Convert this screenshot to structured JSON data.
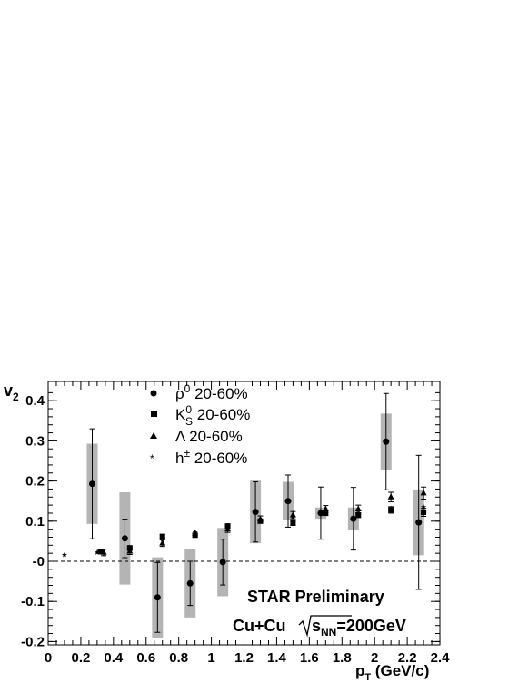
{
  "chart_data": {
    "type": "scatter",
    "xlabel": "p_T (GeV/c)",
    "ylabel": "v_2",
    "xlim": [
      0,
      2.4
    ],
    "ylim": [
      -0.21,
      0.45
    ],
    "grid": false,
    "legend_position": "top-center",
    "reference_line": {
      "y": 0,
      "style": "dashed"
    },
    "x_ticks": [
      "0",
      "0.2",
      "0.4",
      "0.6",
      "0.8",
      "1",
      "1.2",
      "1.4",
      "1.6",
      "1.8",
      "2",
      "2.2",
      "2.4"
    ],
    "y_ticks": [
      "-0.2",
      "-0.1",
      "-0",
      "0.1",
      "0.2",
      "0.3",
      "0.4"
    ],
    "annotations": {
      "preliminary": "STAR Preliminary",
      "system": "Cu+Cu",
      "energy_sym": "s",
      "energy_sub": "NN",
      "energy_val": "=200GeV"
    },
    "series": [
      {
        "name": "ρ0 20-60%",
        "marker": "circle",
        "points": [
          {
            "x": 0.27,
            "y": 0.193,
            "err": 0.137,
            "sys": 0.1
          },
          {
            "x": 0.47,
            "y": 0.057,
            "err": 0.048,
            "sys": 0.115
          },
          {
            "x": 0.67,
            "y": -0.09,
            "err": 0.087,
            "sys": 0.1
          },
          {
            "x": 0.87,
            "y": -0.055,
            "err": 0.055,
            "sys": 0.085
          },
          {
            "x": 1.07,
            "y": -0.002,
            "err": 0.057,
            "sys": 0.085
          },
          {
            "x": 1.27,
            "y": 0.123,
            "err": 0.075,
            "sys": 0.078
          },
          {
            "x": 1.47,
            "y": 0.15,
            "err": 0.065,
            "sys": 0.048
          },
          {
            "x": 1.67,
            "y": 0.12,
            "err": 0.065,
            "sys": 0.014
          },
          {
            "x": 1.87,
            "y": 0.106,
            "err": 0.078,
            "sys": 0.028
          },
          {
            "x": 2.07,
            "y": 0.298,
            "err": 0.12,
            "sys": 0.07
          },
          {
            "x": 2.27,
            "y": 0.097,
            "err": 0.167,
            "sys": 0.082
          }
        ]
      },
      {
        "name": "K0S 20-60%",
        "marker": "square",
        "points": [
          {
            "x": 0.32,
            "y": 0.024,
            "err": 0.004
          },
          {
            "x": 0.5,
            "y": 0.033,
            "err": 0.006
          },
          {
            "x": 0.7,
            "y": 0.062,
            "err": 0.004
          },
          {
            "x": 0.9,
            "y": 0.065,
            "err": 0.004
          },
          {
            "x": 1.1,
            "y": 0.088,
            "err": 0.004
          },
          {
            "x": 1.3,
            "y": 0.1,
            "err": 0.004
          },
          {
            "x": 1.5,
            "y": 0.095,
            "err": 0.005
          },
          {
            "x": 1.7,
            "y": 0.12,
            "err": 0.006
          },
          {
            "x": 1.9,
            "y": 0.115,
            "err": 0.006
          },
          {
            "x": 2.1,
            "y": 0.128,
            "err": 0.008
          },
          {
            "x": 2.3,
            "y": 0.122,
            "err": 0.01
          }
        ]
      },
      {
        "name": "Λ 20-60%",
        "marker": "triangle",
        "points": [
          {
            "x": 0.34,
            "y": 0.022,
            "err": 0.008
          },
          {
            "x": 0.5,
            "y": 0.025,
            "err": 0.008
          },
          {
            "x": 0.7,
            "y": 0.045,
            "err": 0.008
          },
          {
            "x": 0.9,
            "y": 0.07,
            "err": 0.008
          },
          {
            "x": 1.1,
            "y": 0.08,
            "err": 0.008
          },
          {
            "x": 1.3,
            "y": 0.105,
            "err": 0.008
          },
          {
            "x": 1.5,
            "y": 0.115,
            "err": 0.009
          },
          {
            "x": 1.7,
            "y": 0.13,
            "err": 0.009
          },
          {
            "x": 1.9,
            "y": 0.13,
            "err": 0.01
          },
          {
            "x": 2.1,
            "y": 0.16,
            "err": 0.012
          },
          {
            "x": 2.3,
            "y": 0.17,
            "err": 0.015
          }
        ]
      },
      {
        "name": "h± 20-60%",
        "marker": "star",
        "points": [
          {
            "x": 0.1,
            "y": 0.016
          },
          {
            "x": 0.3,
            "y": 0.022
          },
          {
            "x": 0.5,
            "y": 0.035
          },
          {
            "x": 0.7,
            "y": 0.055
          },
          {
            "x": 0.9,
            "y": 0.072
          },
          {
            "x": 1.1,
            "y": 0.088
          },
          {
            "x": 1.3,
            "y": 0.1
          },
          {
            "x": 1.5,
            "y": 0.11
          },
          {
            "x": 1.7,
            "y": 0.12
          },
          {
            "x": 1.9,
            "y": 0.127
          },
          {
            "x": 2.1,
            "y": 0.132
          },
          {
            "x": 2.3,
            "y": 0.135
          }
        ]
      }
    ]
  }
}
